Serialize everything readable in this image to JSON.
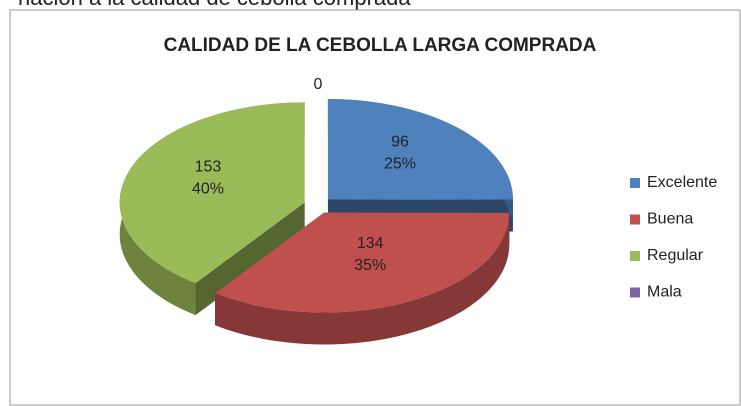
{
  "caption": "nación a la calidad de cebolla comprada",
  "chart_data": {
    "type": "pie3d",
    "title": "CALIDAD DE LA CEBOLLA LARGA COMPRADA",
    "categories": [
      "Excelente",
      "Buena",
      "Regular",
      "Mala"
    ],
    "values": [
      96,
      134,
      153,
      0
    ],
    "percent_labels": [
      "25%",
      "35%",
      "40%",
      null
    ],
    "colors": [
      "#4f81bd",
      "#c0504d",
      "#9bbb59",
      "#8064a2"
    ],
    "legend": "right"
  }
}
